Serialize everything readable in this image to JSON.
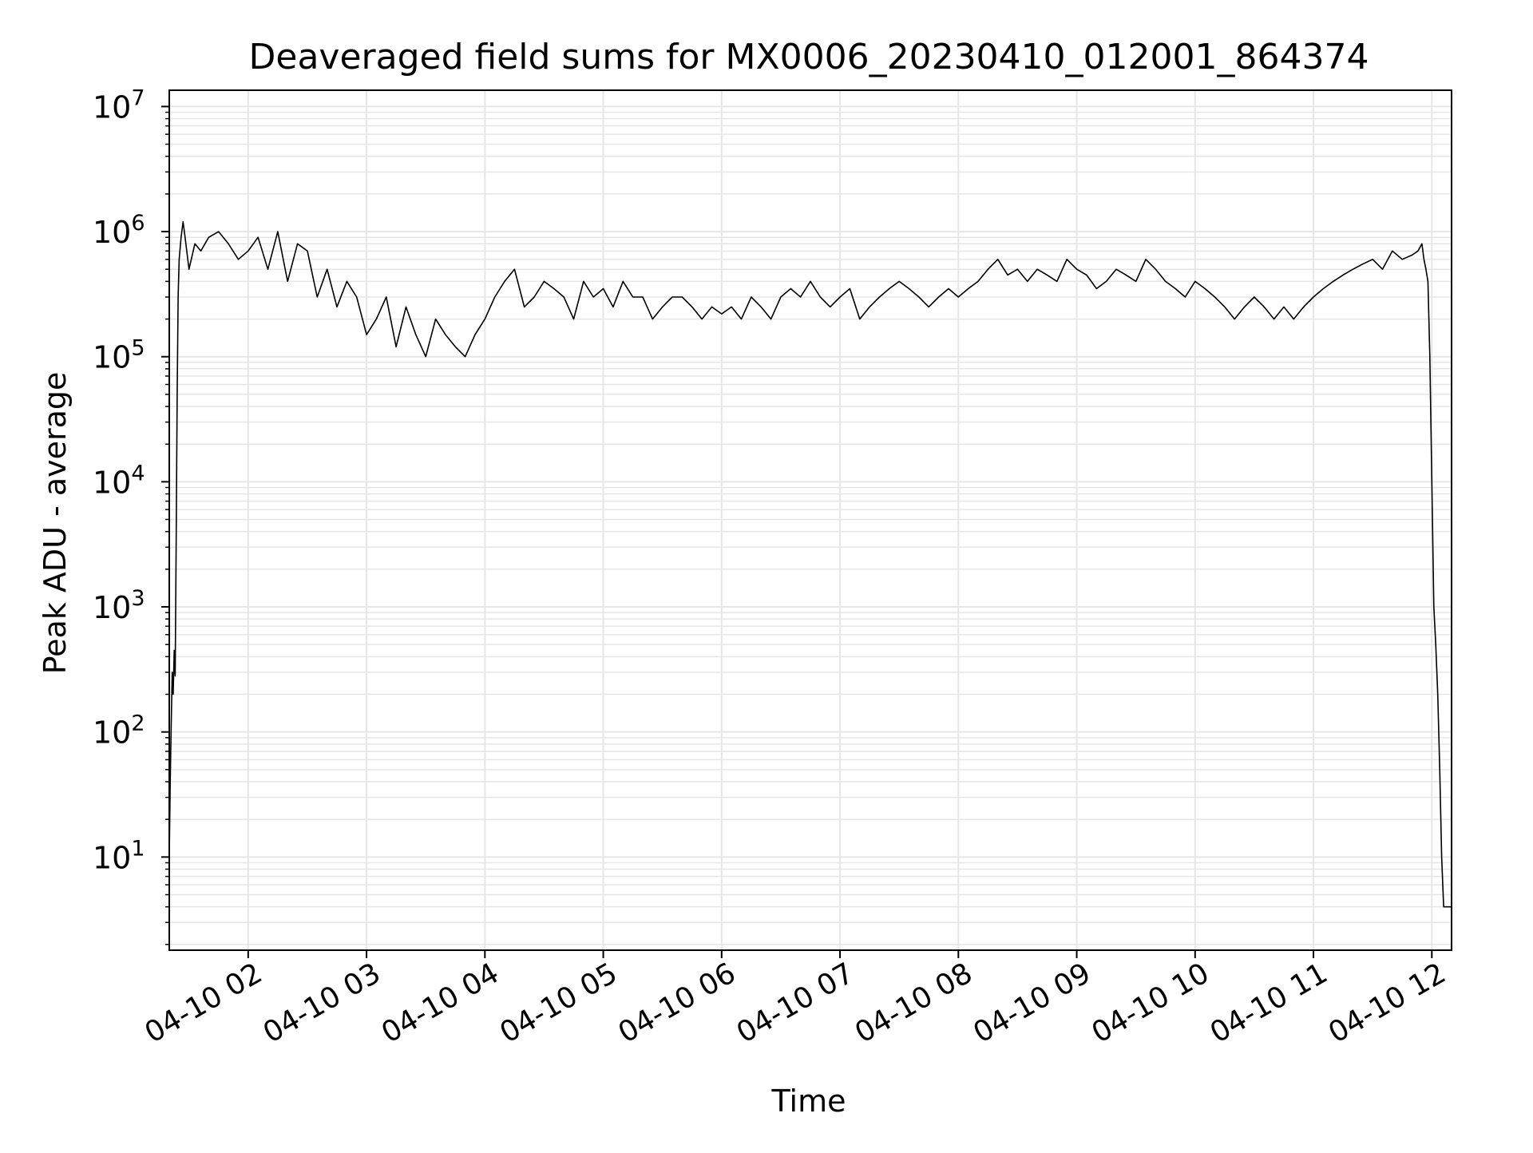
{
  "chart_data": {
    "type": "line",
    "title": "Deaveraged field sums for MX0006_20230410_012001_864374",
    "xlabel": "Time",
    "ylabel": "Peak ADU - average",
    "x_scale": "time",
    "y_scale": "log",
    "xlim": [
      "2023-04-10T01:20:00",
      "2023-04-10T12:10:00"
    ],
    "ylim": [
      1.8,
      13500000
    ],
    "x_ticks": [
      {
        "time": "2023-04-10T02:00:00",
        "label": "04-10 02"
      },
      {
        "time": "2023-04-10T03:00:00",
        "label": "04-10 03"
      },
      {
        "time": "2023-04-10T04:00:00",
        "label": "04-10 04"
      },
      {
        "time": "2023-04-10T05:00:00",
        "label": "04-10 05"
      },
      {
        "time": "2023-04-10T06:00:00",
        "label": "04-10 06"
      },
      {
        "time": "2023-04-10T07:00:00",
        "label": "04-10 07"
      },
      {
        "time": "2023-04-10T08:00:00",
        "label": "04-10 08"
      },
      {
        "time": "2023-04-10T09:00:00",
        "label": "04-10 09"
      },
      {
        "time": "2023-04-10T10:00:00",
        "label": "04-10 10"
      },
      {
        "time": "2023-04-10T11:00:00",
        "label": "04-10 11"
      },
      {
        "time": "2023-04-10T12:00:00",
        "label": "04-10 12"
      }
    ],
    "y_ticks": [
      {
        "value": 10,
        "base": "10",
        "exp": "1"
      },
      {
        "value": 100,
        "base": "10",
        "exp": "2"
      },
      {
        "value": 1000,
        "base": "10",
        "exp": "3"
      },
      {
        "value": 10000,
        "base": "10",
        "exp": "4"
      },
      {
        "value": 100000,
        "base": "10",
        "exp": "5"
      },
      {
        "value": 1000000,
        "base": "10",
        "exp": "6"
      },
      {
        "value": 10000000,
        "base": "10",
        "exp": "7"
      }
    ],
    "grid": true,
    "colors": {
      "line": "#000000",
      "grid": "#e6e6e6",
      "axes": "#000000"
    },
    "series": [
      {
        "x": [
          "2023-04-10T01:20:00",
          "2023-04-10T01:20:30",
          "2023-04-10T01:21:00",
          "2023-04-10T01:21:30",
          "2023-04-10T01:22:00",
          "2023-04-10T01:22:30",
          "2023-04-10T01:23:00",
          "2023-04-10T01:23:30",
          "2023-04-10T01:24:00",
          "2023-04-10T01:24:30",
          "2023-04-10T01:25:00",
          "2023-04-10T01:26:00",
          "2023-04-10T01:27:00",
          "2023-04-10T01:28:00",
          "2023-04-10T01:30:00",
          "2023-04-10T01:33:00",
          "2023-04-10T01:36:00",
          "2023-04-10T01:40:00",
          "2023-04-10T01:45:00",
          "2023-04-10T01:50:00",
          "2023-04-10T01:55:00",
          "2023-04-10T02:00:00",
          "2023-04-10T02:05:00",
          "2023-04-10T02:10:00",
          "2023-04-10T02:15:00",
          "2023-04-10T02:20:00",
          "2023-04-10T02:25:00",
          "2023-04-10T02:30:00",
          "2023-04-10T02:35:00",
          "2023-04-10T02:40:00",
          "2023-04-10T02:45:00",
          "2023-04-10T02:50:00",
          "2023-04-10T02:55:00",
          "2023-04-10T03:00:00",
          "2023-04-10T03:05:00",
          "2023-04-10T03:10:00",
          "2023-04-10T03:15:00",
          "2023-04-10T03:20:00",
          "2023-04-10T03:25:00",
          "2023-04-10T03:30:00",
          "2023-04-10T03:35:00",
          "2023-04-10T03:40:00",
          "2023-04-10T03:45:00",
          "2023-04-10T03:50:00",
          "2023-04-10T03:55:00",
          "2023-04-10T04:00:00",
          "2023-04-10T04:05:00",
          "2023-04-10T04:10:00",
          "2023-04-10T04:15:00",
          "2023-04-10T04:20:00",
          "2023-04-10T04:25:00",
          "2023-04-10T04:30:00",
          "2023-04-10T04:35:00",
          "2023-04-10T04:40:00",
          "2023-04-10T04:45:00",
          "2023-04-10T04:50:00",
          "2023-04-10T04:55:00",
          "2023-04-10T05:00:00",
          "2023-04-10T05:05:00",
          "2023-04-10T05:10:00",
          "2023-04-10T05:15:00",
          "2023-04-10T05:20:00",
          "2023-04-10T05:25:00",
          "2023-04-10T05:30:00",
          "2023-04-10T05:35:00",
          "2023-04-10T05:40:00",
          "2023-04-10T05:45:00",
          "2023-04-10T05:50:00",
          "2023-04-10T05:55:00",
          "2023-04-10T06:00:00",
          "2023-04-10T06:05:00",
          "2023-04-10T06:10:00",
          "2023-04-10T06:15:00",
          "2023-04-10T06:20:00",
          "2023-04-10T06:25:00",
          "2023-04-10T06:30:00",
          "2023-04-10T06:35:00",
          "2023-04-10T06:40:00",
          "2023-04-10T06:45:00",
          "2023-04-10T06:50:00",
          "2023-04-10T06:55:00",
          "2023-04-10T07:00:00",
          "2023-04-10T07:05:00",
          "2023-04-10T07:10:00",
          "2023-04-10T07:15:00",
          "2023-04-10T07:20:00",
          "2023-04-10T07:25:00",
          "2023-04-10T07:30:00",
          "2023-04-10T07:35:00",
          "2023-04-10T07:40:00",
          "2023-04-10T07:45:00",
          "2023-04-10T07:50:00",
          "2023-04-10T07:55:00",
          "2023-04-10T08:00:00",
          "2023-04-10T08:05:00",
          "2023-04-10T08:10:00",
          "2023-04-10T08:15:00",
          "2023-04-10T08:20:00",
          "2023-04-10T08:25:00",
          "2023-04-10T08:30:00",
          "2023-04-10T08:35:00",
          "2023-04-10T08:40:00",
          "2023-04-10T08:45:00",
          "2023-04-10T08:50:00",
          "2023-04-10T08:55:00",
          "2023-04-10T09:00:00",
          "2023-04-10T09:05:00",
          "2023-04-10T09:10:00",
          "2023-04-10T09:15:00",
          "2023-04-10T09:20:00",
          "2023-04-10T09:25:00",
          "2023-04-10T09:30:00",
          "2023-04-10T09:35:00",
          "2023-04-10T09:40:00",
          "2023-04-10T09:45:00",
          "2023-04-10T09:50:00",
          "2023-04-10T09:55:00",
          "2023-04-10T10:00:00",
          "2023-04-10T10:05:00",
          "2023-04-10T10:10:00",
          "2023-04-10T10:15:00",
          "2023-04-10T10:20:00",
          "2023-04-10T10:25:00",
          "2023-04-10T10:30:00",
          "2023-04-10T10:35:00",
          "2023-04-10T10:40:00",
          "2023-04-10T10:45:00",
          "2023-04-10T10:50:00",
          "2023-04-10T10:55:00",
          "2023-04-10T11:00:00",
          "2023-04-10T11:05:00",
          "2023-04-10T11:10:00",
          "2023-04-10T11:15:00",
          "2023-04-10T11:20:00",
          "2023-04-10T11:25:00",
          "2023-04-10T11:30:00",
          "2023-04-10T11:35:00",
          "2023-04-10T11:40:00",
          "2023-04-10T11:45:00",
          "2023-04-10T11:50:00",
          "2023-04-10T11:53:00",
          "2023-04-10T11:55:00",
          "2023-04-10T11:56:00",
          "2023-04-10T11:57:00",
          "2023-04-10T11:58:00",
          "2023-04-10T11:59:00",
          "2023-04-10T12:00:00",
          "2023-04-10T12:01:00",
          "2023-04-10T12:02:00",
          "2023-04-10T12:03:00",
          "2023-04-10T12:04:00",
          "2023-04-10T12:05:00",
          "2023-04-10T12:06:00",
          "2023-04-10T12:07:00",
          "2023-04-10T12:08:00",
          "2023-04-10T12:09:00",
          "2023-04-10T12:10:00"
        ],
        "y": [
          10,
          40,
          120,
          300,
          200,
          450,
          280,
          3000,
          50000,
          300000,
          600000,
          900000,
          1200000,
          900000,
          500000,
          800000,
          700000,
          900000,
          1000000,
          800000,
          600000,
          700000,
          900000,
          500000,
          1000000,
          400000,
          800000,
          700000,
          300000,
          500000,
          250000,
          400000,
          300000,
          150000,
          200000,
          300000,
          120000,
          250000,
          150000,
          100000,
          200000,
          150000,
          120000,
          100000,
          150000,
          200000,
          300000,
          400000,
          500000,
          250000,
          300000,
          400000,
          350000,
          300000,
          200000,
          400000,
          300000,
          350000,
          250000,
          400000,
          300000,
          300000,
          200000,
          250000,
          300000,
          300000,
          250000,
          200000,
          250000,
          220000,
          250000,
          200000,
          300000,
          250000,
          200000,
          300000,
          350000,
          300000,
          400000,
          300000,
          250000,
          300000,
          350000,
          200000,
          250000,
          300000,
          350000,
          400000,
          350000,
          300000,
          250000,
          300000,
          350000,
          300000,
          350000,
          400000,
          500000,
          600000,
          450000,
          500000,
          400000,
          500000,
          450000,
          400000,
          600000,
          500000,
          450000,
          350000,
          400000,
          500000,
          450000,
          400000,
          600000,
          500000,
          400000,
          350000,
          300000,
          400000,
          350000,
          300000,
          250000,
          200000,
          250000,
          300000,
          250000,
          200000,
          250000,
          200000,
          250000,
          300000,
          350000,
          400000,
          450000,
          500000,
          550000,
          600000,
          500000,
          700000,
          600000,
          650000,
          700000,
          800000,
          600000,
          500000,
          400000,
          100000,
          10000,
          1000,
          500,
          200,
          50,
          10,
          4,
          4,
          4,
          4,
          4
        ]
      }
    ]
  }
}
